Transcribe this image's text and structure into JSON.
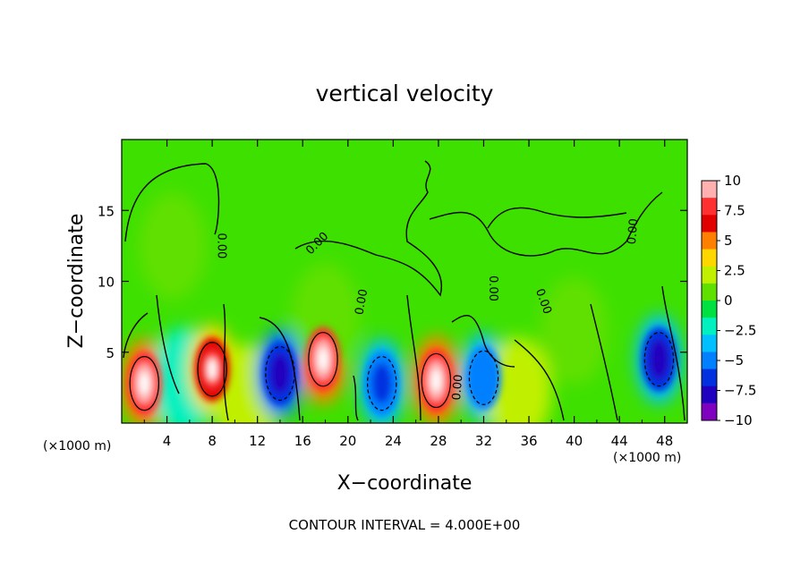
{
  "chart_data": {
    "type": "heatmap",
    "title": "vertical velocity",
    "xlabel": "X−coordinate",
    "ylabel": "Z−coordinate",
    "x_unit": "(×1000 m)",
    "x_unit_right": "(×1000 m)",
    "xlim": [
      0,
      50
    ],
    "ylim": [
      0,
      20
    ],
    "x_ticks": [
      "4",
      "8",
      "12",
      "16",
      "20",
      "24",
      "28",
      "32",
      "36",
      "40",
      "44",
      "48"
    ],
    "y_ticks": [
      "5",
      "10",
      "15"
    ],
    "colorbar": {
      "range": [
        -10,
        10
      ],
      "ticks": [
        "10",
        "7.5",
        "5",
        "2.5",
        "0",
        "−2.5",
        "−5",
        "−7.5",
        "−10"
      ],
      "colors": [
        "#ffb0b0",
        "#ff3030",
        "#e00000",
        "#ff8000",
        "#ffd700",
        "#c0f000",
        "#60e000",
        "#00e040",
        "#00f0c0",
        "#00c0ff",
        "#0080ff",
        "#0030e0",
        "#2000c0",
        "#8000c0"
      ]
    },
    "contour_labels": [
      "0.00",
      "0.00",
      "0.00",
      "0.00",
      "0.00",
      "0.00",
      "0.00"
    ],
    "cells": [
      {
        "x": 2,
        "z": 2.8,
        "value": 10
      },
      {
        "x": 5.5,
        "z": 3.0,
        "value": -4
      },
      {
        "x": 8,
        "z": 3.8,
        "value": 8
      },
      {
        "x": 11,
        "z": 1.8,
        "value": 5
      },
      {
        "x": 14,
        "z": 3.5,
        "value": -9
      },
      {
        "x": 17.8,
        "z": 4.5,
        "value": 10
      },
      {
        "x": 23,
        "z": 2.8,
        "value": -7
      },
      {
        "x": 27.8,
        "z": 3.0,
        "value": 10
      },
      {
        "x": 32,
        "z": 3.2,
        "value": -6
      },
      {
        "x": 35,
        "z": 2.3,
        "value": 4
      },
      {
        "x": 47.5,
        "z": 4.5,
        "value": -8
      },
      {
        "x": 4.5,
        "z": 12.5,
        "value": 1.5
      },
      {
        "x": 18,
        "z": 7.5,
        "value": 2
      },
      {
        "x": 40,
        "z": 6.5,
        "value": 1.5
      }
    ],
    "footer": "CONTOUR INTERVAL =   4.000E+00"
  }
}
